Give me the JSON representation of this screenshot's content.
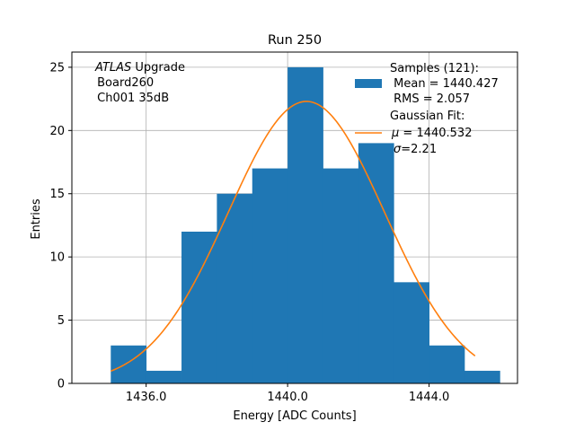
{
  "chart_data": {
    "type": "bar",
    "title": "Run 250",
    "xlabel": "Energy [ADC Counts]",
    "ylabel": "Entries",
    "xlim": [
      1433.9,
      1446.5
    ],
    "ylim": [
      0,
      26.2
    ],
    "xticks": [
      {
        "value": 1436,
        "label": "1436.0"
      },
      {
        "value": 1440,
        "label": "1440.0"
      },
      {
        "value": 1444,
        "label": "1444.0"
      }
    ],
    "yticks": [
      {
        "value": 0,
        "label": "0"
      },
      {
        "value": 5,
        "label": "5"
      },
      {
        "value": 10,
        "label": "10"
      },
      {
        "value": 15,
        "label": "15"
      },
      {
        "value": 20,
        "label": "20"
      },
      {
        "value": 25,
        "label": "25"
      }
    ],
    "grid": true,
    "bar_color": "#1f77b4",
    "fit_color": "#ff7f0e",
    "histogram": {
      "bin_edges": [
        1435.0,
        1436.0,
        1437.0,
        1438.0,
        1439.0,
        1440.0,
        1441.0,
        1442.0,
        1443.0,
        1444.0,
        1445.0,
        1446.0
      ],
      "counts": [
        3,
        1,
        12,
        15,
        17,
        25,
        17,
        19,
        8,
        3,
        1
      ]
    },
    "fit": {
      "amplitude": 22.3,
      "mu": 1440.532,
      "sigma": 2.21,
      "x_range": [
        1435.0,
        1445.3
      ]
    },
    "annotation": {
      "line1_italic": "ATLAS",
      "line1_rest": " Upgrade",
      "line2": " Board260",
      "line3": " Ch001 35dB"
    },
    "legend": {
      "placement": "top-right",
      "samples_lines": [
        "Samples (121):",
        " Mean = 1440.427",
        " RMS = 2.057"
      ],
      "fit_line1": "Gaussian Fit:",
      "fit_mu_symbol": "μ",
      "fit_mu_rest": " = 1440.532",
      "fit_sigma_symbol": "σ",
      "fit_sigma_rest": "=2.21"
    }
  }
}
